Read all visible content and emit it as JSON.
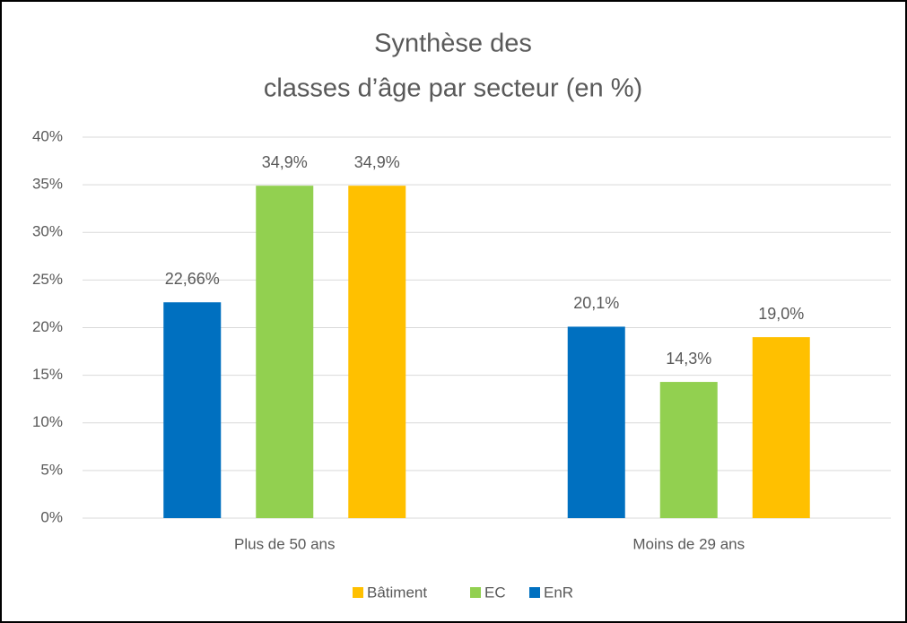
{
  "chart_data": {
    "type": "bar",
    "title": [
      "Synthèse des",
      "classes d’âge par secteur (en %)"
    ],
    "categories": [
      "Plus de 50 ans",
      "Moins de 29 ans"
    ],
    "series": [
      {
        "name": "EnR",
        "color": "#0070c0",
        "values": [
          22.66,
          20.1
        ],
        "value_labels": [
          "22,66%",
          "20,1%"
        ]
      },
      {
        "name": "EC",
        "color": "#92d050",
        "values": [
          34.9,
          14.3
        ],
        "value_labels": [
          "34,9%",
          "14,3%"
        ]
      },
      {
        "name": "Bâtiment",
        "color": "#ffc000",
        "values": [
          34.9,
          19.0
        ],
        "value_labels": [
          "34,9%",
          "19,0%"
        ]
      }
    ],
    "ylim": [
      0,
      40
    ],
    "yticks": [
      {
        "value": 0,
        "label": "0%"
      },
      {
        "value": 5,
        "label": "5%"
      },
      {
        "value": 10,
        "label": "10%"
      },
      {
        "value": 15,
        "label": "15%"
      },
      {
        "value": 20,
        "label": "20%"
      },
      {
        "value": 25,
        "label": "25%"
      },
      {
        "value": 30,
        "label": "30%"
      },
      {
        "value": 35,
        "label": "35%"
      },
      {
        "value": 40,
        "label": "40%"
      }
    ],
    "grid": true,
    "legend": "bottom"
  }
}
